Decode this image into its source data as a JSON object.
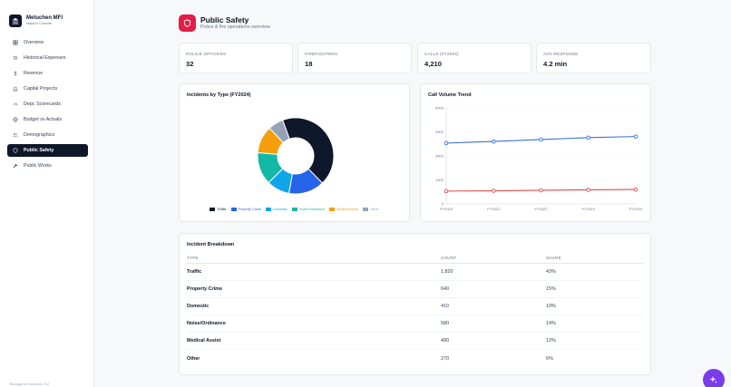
{
  "brand": {
    "title": "Metuchen MFI",
    "subtitle": "Mayor's Console"
  },
  "nav": [
    {
      "label": "Overview",
      "icon": "grid-icon"
    },
    {
      "label": "Historical Expenses",
      "icon": "history-icon"
    },
    {
      "label": "Revenue",
      "icon": "dollar-icon"
    },
    {
      "label": "Capital Projects",
      "icon": "building-icon"
    },
    {
      "label": "Dept. Scorecards",
      "icon": "gauge-icon"
    },
    {
      "label": "Budget vs Actuals",
      "icon": "target-icon"
    },
    {
      "label": "Demographics",
      "icon": "users-icon"
    },
    {
      "label": "Public Safety",
      "icon": "shield-icon",
      "active": true
    },
    {
      "label": "Public Works",
      "icon": "wrench-icon"
    }
  ],
  "footer": "Borough of Metuchen, NJ",
  "header": {
    "title": "Public Safety",
    "subtitle": "Police & fire operations overview"
  },
  "stats": [
    {
      "label": "POLICE OFFICERS",
      "value": "32"
    },
    {
      "label": "FIREFIGHTERS",
      "value": "18"
    },
    {
      "label": "CALLS (FY2024)",
      "value": "4,210"
    },
    {
      "label": "AVG RESPONSE",
      "value": "4.2 min"
    }
  ],
  "donut_card": {
    "title": "Incidents by Type (FY2024)"
  },
  "line_card": {
    "title": "Call Volume Trend"
  },
  "table_card": {
    "title": "Incident Breakdown",
    "columns": [
      "TYPE",
      "COUNT",
      "SHARE"
    ],
    "rows": [
      {
        "type": "Traffic",
        "count": "1,820",
        "share": "43%"
      },
      {
        "type": "Property Crime",
        "count": "640",
        "share": "15%"
      },
      {
        "type": "Domestic",
        "count": "410",
        "share": "10%"
      },
      {
        "type": "Noise/Ordinance",
        "count": "580",
        "share": "14%"
      },
      {
        "type": "Medical Assist",
        "count": "490",
        "share": "12%"
      },
      {
        "type": "Other",
        "count": "270",
        "share": "6%"
      }
    ]
  },
  "colors": {
    "accent": "#e11d48",
    "nav_active": "#0f172a",
    "fab": "#7c3aed"
  },
  "chart_data": [
    {
      "type": "pie",
      "title": "Incidents by Type (FY2024)",
      "categories": [
        "Traffic",
        "Property Crime",
        "Domestic",
        "Noise/Ordinance",
        "Medical Assist",
        "Other"
      ],
      "values": [
        1820,
        640,
        410,
        580,
        490,
        270
      ],
      "colors": [
        "#0f172a",
        "#2563eb",
        "#0ea5e9",
        "#14b8a6",
        "#f59e0b",
        "#94a3b8"
      ],
      "legend": "bottom"
    },
    {
      "type": "line",
      "title": "Call Volume Trend",
      "x": [
        "FY2020",
        "FY2021",
        "FY2022",
        "FY2023",
        "FY2024"
      ],
      "series": [
        {
          "values": [
            3800,
            3900,
            4020,
            4140,
            4210
          ],
          "color": "#3b6fd6"
        },
        {
          "values": [
            800,
            820,
            850,
            880,
            900
          ],
          "color": "#dc4a4a"
        }
      ],
      "yticks": [
        0,
        1500,
        3000,
        4500,
        6000
      ],
      "ylim": [
        0,
        6000
      ],
      "grid": true
    }
  ]
}
